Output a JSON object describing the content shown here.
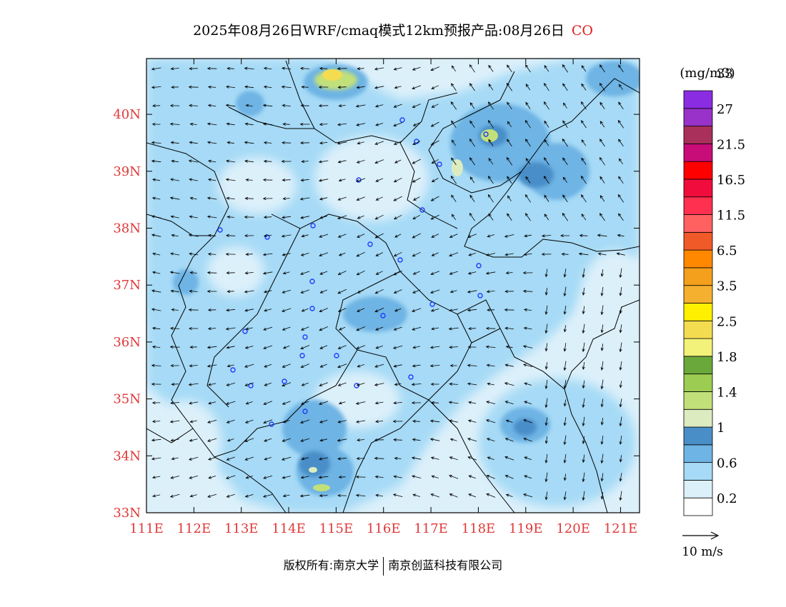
{
  "title": {
    "text": "2025年08月26日WRF/cmaq模式12km预报产品:08月26日",
    "species": "CO"
  },
  "map": {
    "lon_labels": [
      "111E",
      "112E",
      "113E",
      "114E",
      "115E",
      "116E",
      "117E",
      "118E",
      "119E",
      "120E",
      "121E"
    ],
    "lat_labels": [
      "33N",
      "34N",
      "35N",
      "36N",
      "37N",
      "38N",
      "39N",
      "40N"
    ],
    "lon_range": [
      111,
      121.4
    ],
    "lat_range": [
      33,
      40.98
    ]
  },
  "colorbar": {
    "unit": "(mg/m3)",
    "colors": [
      "#ffffff",
      "#dcf0fa",
      "#a6daf6",
      "#6eb4e4",
      "#4a8ec8",
      "#dcecc0",
      "#c2e07a",
      "#9ccc52",
      "#6aa83c",
      "#f2f27a",
      "#f4dc50",
      "#fff000",
      "#f6b030",
      "#f4a01c",
      "#ff8800",
      "#f05a28",
      "#ff6060",
      "#ff3050",
      "#f00c3c",
      "#ff0000",
      "#c80c78",
      "#a8305a",
      "#9832c8",
      "#8a2ce2"
    ],
    "labels": [
      "0.2",
      "0.6",
      "1",
      "1.4",
      "1.8",
      "2.5",
      "3.5",
      "6.5",
      "11.5",
      "16.5",
      "21.5",
      "27",
      "33"
    ]
  },
  "wind_legend": {
    "label": "10 m/s"
  },
  "footer": {
    "left": "版权所有:南京大学",
    "right": "南京创蓝科技有限公司"
  }
}
